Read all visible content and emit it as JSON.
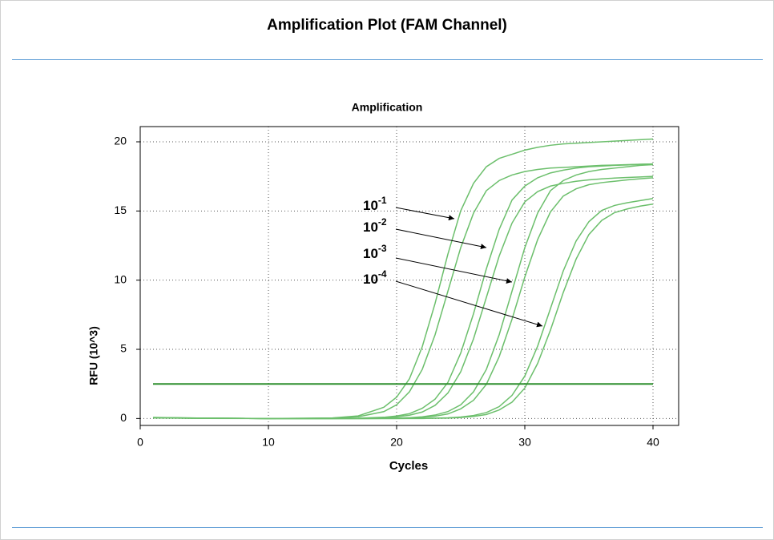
{
  "header": {
    "title": "Amplification Plot (FAM Channel)"
  },
  "chart_data": {
    "type": "line",
    "title": "Amplification",
    "xlabel": "Cycles",
    "ylabel": "RFU (10^3)",
    "xlim": [
      0,
      42
    ],
    "ylim": [
      -0.5,
      21.1
    ],
    "xticks": [
      0,
      10,
      20,
      30,
      40
    ],
    "yticks": [
      0,
      5,
      10,
      15,
      20
    ],
    "grid": true,
    "x": [
      1,
      5,
      10,
      15,
      17,
      19,
      20,
      21,
      22,
      23,
      24,
      25,
      26,
      27,
      28,
      29,
      30,
      31,
      32,
      33,
      34,
      35,
      36,
      37,
      38,
      39,
      40
    ],
    "series": [
      {
        "color": "#6cbf6c",
        "values": [
          0.05,
          0.02,
          0,
          0.04,
          0.19,
          0.81,
          1.54,
          2.87,
          5.19,
          8.32,
          11.88,
          15.01,
          17.0,
          18.2,
          18.8,
          19.1,
          19.4,
          19.6,
          19.75,
          19.85,
          19.9,
          19.95,
          20.0,
          20.05,
          20.1,
          20.15,
          20.2
        ]
      },
      {
        "color": "#6cbf6c",
        "values": [
          0.08,
          0.03,
          0,
          0.03,
          0.12,
          0.5,
          0.99,
          1.93,
          3.55,
          6.05,
          9.2,
          12.35,
          14.85,
          16.47,
          17.2,
          17.6,
          17.85,
          18.0,
          18.1,
          18.15,
          18.2,
          18.25,
          18.3,
          18.32,
          18.35,
          18.38,
          18.4
        ]
      },
      {
        "color": "#6cbf6c",
        "values": [
          0.06,
          0.02,
          0,
          0,
          0.02,
          0.09,
          0.18,
          0.35,
          0.74,
          1.4,
          2.61,
          4.73,
          7.58,
          10.82,
          13.67,
          15.79,
          16.8,
          17.4,
          17.75,
          17.95,
          18.1,
          18.2,
          18.25,
          18.3,
          18.33,
          18.37,
          18.4
        ]
      },
      {
        "color": "#6cbf6c",
        "values": [
          0.04,
          0.01,
          0,
          0,
          0.01,
          0.06,
          0.12,
          0.24,
          0.47,
          0.95,
          1.84,
          3.38,
          5.76,
          8.75,
          11.74,
          14.12,
          15.66,
          16.4,
          16.8,
          17.0,
          17.15,
          17.25,
          17.32,
          17.38,
          17.42,
          17.46,
          17.5
        ]
      },
      {
        "color": "#6cbf6c",
        "values": [
          0.07,
          0.03,
          0,
          0,
          0,
          0.01,
          0.03,
          0.06,
          0.12,
          0.25,
          0.5,
          0.99,
          1.93,
          3.55,
          6.05,
          9.2,
          12.35,
          14.85,
          16.47,
          17.2,
          17.6,
          17.85,
          18.0,
          18.1,
          18.2,
          18.3,
          18.35
        ]
      },
      {
        "color": "#6cbf6c",
        "values": [
          0.05,
          0.02,
          0,
          0,
          0,
          0.01,
          0.02,
          0.04,
          0.08,
          0.17,
          0.33,
          0.7,
          1.32,
          2.47,
          4.47,
          7.17,
          10.23,
          12.93,
          14.93,
          16.08,
          16.6,
          16.9,
          17.05,
          17.15,
          17.25,
          17.33,
          17.4
        ]
      },
      {
        "color": "#6cbf6c",
        "values": [
          0.06,
          0.02,
          0,
          0,
          0,
          0,
          0,
          0.01,
          0.01,
          0.03,
          0.05,
          0.11,
          0.22,
          0.43,
          0.86,
          1.67,
          3.07,
          5.23,
          7.95,
          10.67,
          12.83,
          14.23,
          15.04,
          15.4,
          15.6,
          15.75,
          15.9
        ]
      },
      {
        "color": "#6cbf6c",
        "values": [
          0.05,
          0.02,
          0,
          0,
          0,
          0,
          0,
          0,
          0,
          0.02,
          0.03,
          0.07,
          0.15,
          0.29,
          0.62,
          1.18,
          2.2,
          3.98,
          6.39,
          9.11,
          11.52,
          13.3,
          14.32,
          14.88,
          15.15,
          15.35,
          15.5
        ]
      }
    ],
    "threshold": 2.5,
    "threshold_color": "#2f8f2f",
    "annotations": [
      {
        "text": "10",
        "sup": "-1"
      },
      {
        "text": "10",
        "sup": "-2"
      },
      {
        "text": "10",
        "sup": "-3"
      },
      {
        "text": "10",
        "sup": "-4"
      }
    ]
  }
}
